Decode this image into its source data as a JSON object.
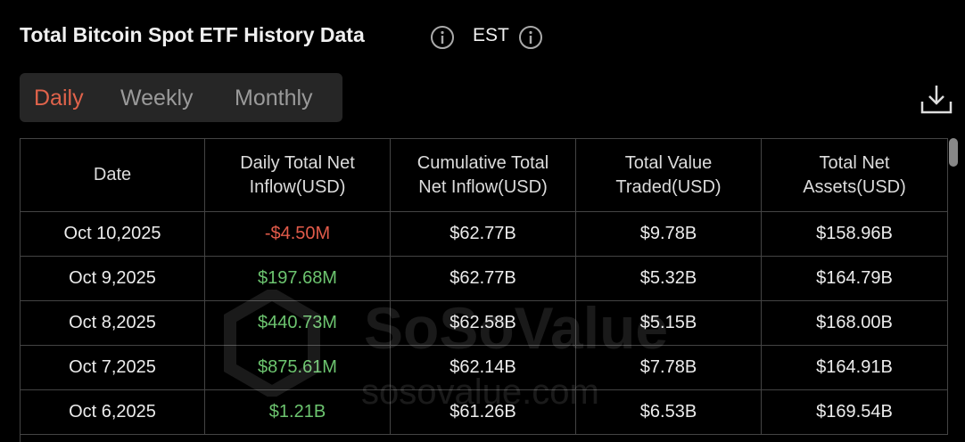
{
  "header": {
    "title": "Total Bitcoin Spot ETF History Data",
    "timezone": "EST"
  },
  "tabs": [
    "Daily",
    "Weekly",
    "Monthly"
  ],
  "table": {
    "columns": [
      "Date",
      "Daily Total Net Inflow(USD)",
      "Cumulative Total Net Inflow(USD)",
      "Total Value Traded(USD)",
      "Total Net Assets(USD)"
    ],
    "rows": [
      [
        "Oct 10,2025",
        "-$4.50M",
        "$62.77B",
        "$9.78B",
        "$158.96B"
      ],
      [
        "Oct 9,2025",
        "$197.68M",
        "$62.77B",
        "$5.32B",
        "$164.79B"
      ],
      [
        "Oct 8,2025",
        "$440.73M",
        "$62.58B",
        "$5.15B",
        "$168.00B"
      ],
      [
        "Oct 7,2025",
        "$875.61M",
        "$62.14B",
        "$7.78B",
        "$164.91B"
      ],
      [
        "Oct 6,2025",
        "$1.21B",
        "$61.26B",
        "$6.53B",
        "$169.54B"
      ]
    ]
  },
  "watermark": {
    "brand": "SoSoValue",
    "site": "sosovalue.com"
  }
}
